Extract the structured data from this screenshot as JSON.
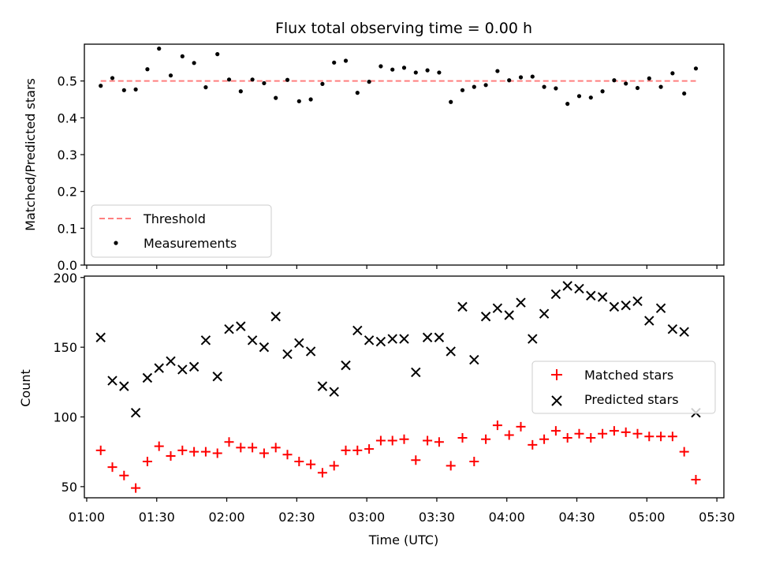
{
  "figure": {
    "title": "Flux total observing time = 0.00 h"
  },
  "chart_data": [
    {
      "type": "scatter",
      "ylabel": "Matched/Predicted stars",
      "xlabel": "",
      "xlim": [
        "00:59:00",
        "05:33:00"
      ],
      "ylim": [
        0.0,
        0.6
      ],
      "x_ticks": [
        "01:00",
        "01:30",
        "02:00",
        "02:30",
        "03:00",
        "03:30",
        "04:00",
        "04:30",
        "05:00",
        "05:30"
      ],
      "y_ticks": [
        "0.0",
        "0.1",
        "0.2",
        "0.3",
        "0.4",
        "0.5"
      ],
      "legend_position": "lower-left",
      "series": [
        {
          "name": "Threshold",
          "kind": "dashed-line",
          "color": "#ff7f7f",
          "x": [
            "01:06:00",
            "05:21:00"
          ],
          "values": [
            0.5,
            0.5
          ]
        },
        {
          "name": "Measurements",
          "kind": "dot",
          "color": "#000000",
          "x": [
            "01:06:00",
            "01:11:00",
            "01:16:00",
            "01:21:00",
            "01:26:00",
            "01:31:00",
            "01:36:00",
            "01:41:00",
            "01:46:00",
            "01:51:00",
            "01:56:00",
            "02:01:00",
            "02:06:00",
            "02:11:00",
            "02:16:00",
            "02:21:00",
            "02:26:00",
            "02:31:00",
            "02:36:00",
            "02:41:00",
            "02:46:00",
            "02:51:00",
            "02:56:00",
            "03:01:00",
            "03:06:00",
            "03:11:00",
            "03:16:00",
            "03:21:00",
            "03:26:00",
            "03:31:00",
            "03:36:00",
            "03:41:00",
            "03:46:00",
            "03:51:00",
            "03:56:00",
            "04:01:00",
            "04:06:00",
            "04:11:00",
            "04:16:00",
            "04:21:00",
            "04:26:00",
            "04:31:00",
            "04:36:00",
            "04:41:00",
            "04:46:00",
            "04:51:00",
            "04:56:00",
            "05:01:00",
            "05:06:00",
            "05:11:00",
            "05:16:00",
            "05:21:00"
          ],
          "values": [
            0.487,
            0.508,
            0.475,
            0.477,
            0.532,
            0.588,
            0.515,
            0.567,
            0.549,
            0.483,
            0.573,
            0.504,
            0.472,
            0.504,
            0.494,
            0.454,
            0.503,
            0.445,
            0.45,
            0.492,
            0.55,
            0.555,
            0.468,
            0.498,
            0.54,
            0.531,
            0.536,
            0.523,
            0.529,
            0.523,
            0.443,
            0.475,
            0.484,
            0.489,
            0.527,
            0.502,
            0.51,
            0.512,
            0.484,
            0.48,
            0.438,
            0.459,
            0.455,
            0.472,
            0.502,
            0.493,
            0.481,
            0.507,
            0.484,
            0.521,
            0.466,
            0.534
          ]
        }
      ]
    },
    {
      "type": "scatter",
      "ylabel": "Count",
      "xlabel": "Time (UTC)",
      "xlim": [
        "00:59:00",
        "05:33:00"
      ],
      "ylim": [
        42,
        201
      ],
      "x_ticks": [
        "01:00",
        "01:30",
        "02:00",
        "02:30",
        "03:00",
        "03:30",
        "04:00",
        "04:30",
        "05:00",
        "05:30"
      ],
      "y_ticks": [
        "50",
        "100",
        "150",
        "200"
      ],
      "legend_position": "center-right",
      "series": [
        {
          "name": "Matched stars",
          "kind": "plus",
          "color": "#ff0000",
          "x": [
            "01:06:00",
            "01:11:00",
            "01:16:00",
            "01:21:00",
            "01:26:00",
            "01:31:00",
            "01:36:00",
            "01:41:00",
            "01:46:00",
            "01:51:00",
            "01:56:00",
            "02:01:00",
            "02:06:00",
            "02:11:00",
            "02:16:00",
            "02:21:00",
            "02:26:00",
            "02:31:00",
            "02:36:00",
            "02:41:00",
            "02:46:00",
            "02:51:00",
            "02:56:00",
            "03:01:00",
            "03:06:00",
            "03:11:00",
            "03:16:00",
            "03:21:00",
            "03:26:00",
            "03:31:00",
            "03:36:00",
            "03:41:00",
            "03:46:00",
            "03:51:00",
            "03:56:00",
            "04:01:00",
            "04:06:00",
            "04:11:00",
            "04:16:00",
            "04:21:00",
            "04:26:00",
            "04:31:00",
            "04:36:00",
            "04:41:00",
            "04:46:00",
            "04:51:00",
            "04:56:00",
            "05:01:00",
            "05:06:00",
            "05:11:00",
            "05:16:00",
            "05:21:00"
          ],
          "values": [
            76,
            64,
            58,
            49,
            68,
            79,
            72,
            76,
            75,
            75,
            74,
            82,
            78,
            78,
            74,
            78,
            73,
            68,
            66,
            60,
            65,
            76,
            76,
            77,
            83,
            83,
            84,
            69,
            83,
            82,
            65,
            85,
            68,
            84,
            94,
            87,
            93,
            80,
            84,
            90,
            85,
            88,
            85,
            88,
            90,
            89,
            88,
            86,
            86,
            86,
            75,
            55
          ]
        },
        {
          "name": "Predicted stars",
          "kind": "cross",
          "color": "#000000",
          "x": [
            "01:06:00",
            "01:11:00",
            "01:16:00",
            "01:21:00",
            "01:26:00",
            "01:31:00",
            "01:36:00",
            "01:41:00",
            "01:46:00",
            "01:51:00",
            "01:56:00",
            "02:01:00",
            "02:06:00",
            "02:11:00",
            "02:16:00",
            "02:21:00",
            "02:26:00",
            "02:31:00",
            "02:36:00",
            "02:41:00",
            "02:46:00",
            "02:51:00",
            "02:56:00",
            "03:01:00",
            "03:06:00",
            "03:11:00",
            "03:16:00",
            "03:21:00",
            "03:26:00",
            "03:31:00",
            "03:36:00",
            "03:41:00",
            "03:46:00",
            "03:51:00",
            "03:56:00",
            "04:01:00",
            "04:06:00",
            "04:11:00",
            "04:16:00",
            "04:21:00",
            "04:26:00",
            "04:31:00",
            "04:36:00",
            "04:41:00",
            "04:46:00",
            "04:51:00",
            "04:56:00",
            "05:01:00",
            "05:06:00",
            "05:11:00",
            "05:16:00",
            "05:21:00"
          ],
          "values": [
            157,
            126,
            122,
            103,
            128,
            135,
            140,
            134,
            136,
            155,
            129,
            163,
            165,
            155,
            150,
            172,
            145,
            153,
            147,
            122,
            118,
            137,
            162,
            155,
            154,
            156,
            156,
            132,
            157,
            157,
            147,
            179,
            141,
            172,
            178,
            173,
            182,
            156,
            174,
            188,
            194,
            192,
            187,
            186,
            179,
            180,
            183,
            169,
            178,
            163,
            161,
            103
          ]
        }
      ]
    }
  ]
}
